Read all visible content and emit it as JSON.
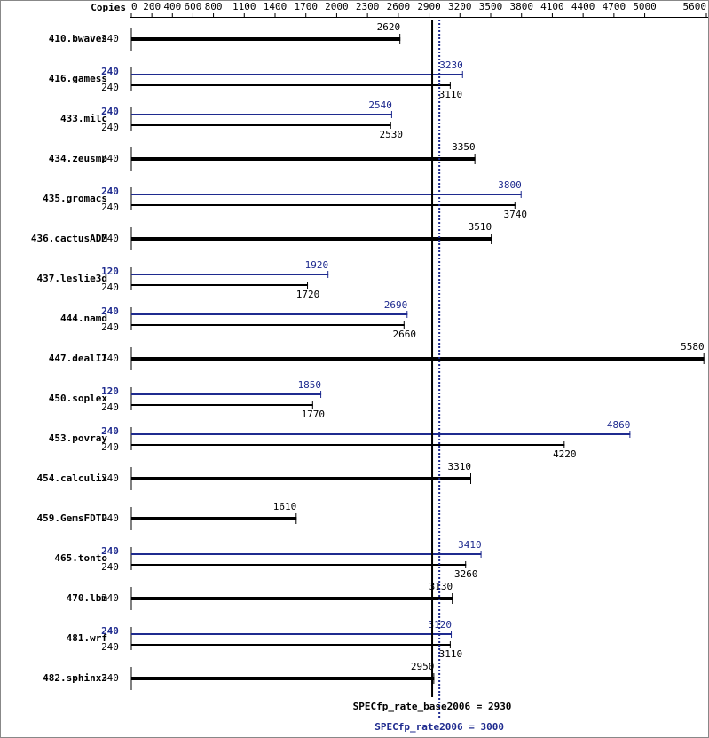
{
  "chart_data": {
    "type": "bar",
    "copies_header": "Copies",
    "categories": [
      "410.bwaves",
      "416.gamess",
      "433.milc",
      "434.zeusmp",
      "435.gromacs",
      "436.cactusADM",
      "437.leslie3d",
      "444.namd",
      "447.dealII",
      "450.soplex",
      "453.povray",
      "454.calculix",
      "459.GemsFDTD",
      "465.tonto",
      "470.lbm",
      "481.wrf",
      "482.sphinx3"
    ],
    "series": [
      {
        "color": "#000000",
        "copies": [
          240,
          240,
          240,
          240,
          240,
          240,
          240,
          240,
          240,
          240,
          240,
          240,
          240,
          240,
          240,
          240,
          240
        ],
        "values": [
          2620,
          3110,
          2530,
          3350,
          3740,
          3510,
          1720,
          2660,
          5580,
          1770,
          4220,
          3310,
          1610,
          3260,
          3130,
          3110,
          2950
        ]
      },
      {
        "color": "#1f2b8f",
        "copies": [
          null,
          240,
          240,
          null,
          240,
          null,
          120,
          240,
          null,
          120,
          240,
          null,
          null,
          240,
          null,
          240,
          null
        ],
        "values": [
          null,
          3230,
          2540,
          null,
          3800,
          null,
          1920,
          2690,
          null,
          1850,
          4860,
          null,
          null,
          3410,
          null,
          3120,
          null
        ]
      }
    ],
    "xlim": [
      0,
      5600
    ],
    "xticks": [
      0,
      200,
      400,
      600,
      800,
      1100,
      1400,
      1700,
      2000,
      2300,
      2600,
      2900,
      3200,
      3500,
      3800,
      4100,
      4400,
      4700,
      5000,
      5600
    ],
    "reference_lines": [
      {
        "value": 2930,
        "label": "SPECfp_rate_base2006 = 2930",
        "color": "#000000",
        "style": "solid"
      },
      {
        "value": 3000,
        "label": "SPECfp_rate2006 = 3000",
        "color": "#1f2b8f",
        "style": "dotted"
      }
    ]
  }
}
